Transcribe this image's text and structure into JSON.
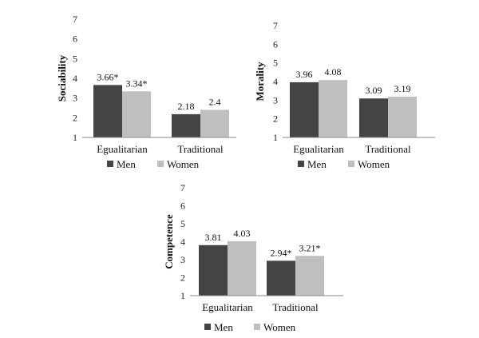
{
  "legend": {
    "men": "Men",
    "women": "Women"
  },
  "colors": {
    "men": "#444444",
    "women": "#bfbfbf",
    "axis": "#888888"
  },
  "chart_data": [
    {
      "type": "bar",
      "ylabel": "Sociability",
      "ylim": [
        1,
        7
      ],
      "yticks": [
        "1",
        "2",
        "3",
        "4",
        "5",
        "6",
        "7"
      ],
      "categories": [
        "Egualitarian",
        "Traditional"
      ],
      "series": [
        {
          "name": "Men",
          "values": [
            3.66,
            2.18
          ],
          "labels": [
            "3.66*",
            "2.18"
          ]
        },
        {
          "name": "Women",
          "values": [
            3.34,
            2.4
          ],
          "labels": [
            "3.34*",
            "2.4"
          ]
        }
      ],
      "legend_position": "bottom",
      "grid": false
    },
    {
      "type": "bar",
      "ylabel": "Morality",
      "ylim": [
        1,
        7
      ],
      "yticks": [
        "1",
        "2",
        "3",
        "4",
        "5",
        "6",
        "7"
      ],
      "categories": [
        "Egualitarian",
        "Traditional"
      ],
      "series": [
        {
          "name": "Men",
          "values": [
            3.96,
            3.09
          ],
          "labels": [
            "3.96",
            "3.09"
          ]
        },
        {
          "name": "Women",
          "values": [
            4.08,
            3.19
          ],
          "labels": [
            "4.08",
            "3.19"
          ]
        }
      ],
      "legend_position": "bottom",
      "grid": false
    },
    {
      "type": "bar",
      "ylabel": "Competence",
      "ylim": [
        1,
        7
      ],
      "yticks": [
        "1",
        "2",
        "3",
        "4",
        "5",
        "6",
        "7"
      ],
      "categories": [
        "Egualitarian",
        "Traditional"
      ],
      "series": [
        {
          "name": "Men",
          "values": [
            3.81,
            2.94
          ],
          "labels": [
            "3.81",
            "2.94*"
          ]
        },
        {
          "name": "Women",
          "values": [
            4.03,
            3.21
          ],
          "labels": [
            "4.03",
            "3.21*"
          ]
        }
      ],
      "legend_position": "bottom",
      "grid": false
    }
  ]
}
